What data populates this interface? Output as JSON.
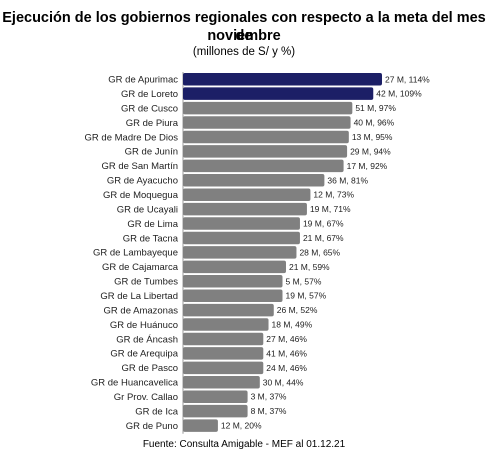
{
  "chart_data": {
    "type": "bar",
    "orientation": "horizontal",
    "title_line1": "Ejecución de los gobiernos regionales con respecto  a la meta del mes de",
    "title_line2": "noviembre",
    "subtitle": "(millones de S/ y %)",
    "source": "Fuente: Consulta Amigable - MEF al 01.12.21",
    "categories": [
      "GR de Apurimac",
      "GR de Loreto",
      "GR de Cusco",
      "GR de Piura",
      "GR de Madre De Dios",
      "GR de Junín",
      "GR de San Martín",
      "GR de Ayacucho",
      "GR de Moquegua",
      "GR de Ucayali",
      "GR de Lima",
      "GR de Tacna",
      "GR de Lambayeque",
      "GR de Cajamarca",
      "GR de Tumbes",
      "GR de La Libertad",
      "GR de Amazonas",
      "GR de Huánuco",
      "GR de Áncash",
      "GR de Arequipa",
      "GR de Pasco",
      "GR de Huancavelica",
      "Gr Prov. Callao",
      "GR de Ica",
      "GR de Puno"
    ],
    "values": [
      114,
      109,
      97,
      96,
      95,
      94,
      92,
      81,
      73,
      71,
      67,
      67,
      65,
      59,
      57,
      57,
      52,
      49,
      46,
      46,
      46,
      44,
      37,
      37,
      20
    ],
    "amounts": [
      27,
      42,
      51,
      40,
      13,
      29,
      17,
      36,
      12,
      19,
      19,
      21,
      28,
      21,
      5,
      19,
      26,
      18,
      27,
      41,
      24,
      30,
      3,
      8,
      12
    ],
    "data_labels": [
      "27 M, 114%",
      "42 M, 109%",
      "51 M, 97%",
      "40 M, 96%",
      "13 M, 95%",
      "29 M, 94%",
      "17 M, 92%",
      "36 M, 81%",
      "12 M, 73%",
      "19 M, 71%",
      "19 M, 67%",
      "21 M, 67%",
      "28 M, 65%",
      "21 M, 59%",
      "5 M, 57%",
      "19 M, 57%",
      "26 M, 52%",
      "18 M, 49%",
      "27 M, 46%",
      "41 M, 46%",
      "24 M, 46%",
      "30 M, 44%",
      "3 M, 37%",
      "8 M, 37%",
      "12 M, 20%"
    ],
    "highlighted": [
      0,
      1
    ],
    "colors": {
      "highlight": "#1c1f66",
      "default": "#808080"
    },
    "xlim": [
      0,
      114
    ],
    "grid": false,
    "legend": "none"
  }
}
